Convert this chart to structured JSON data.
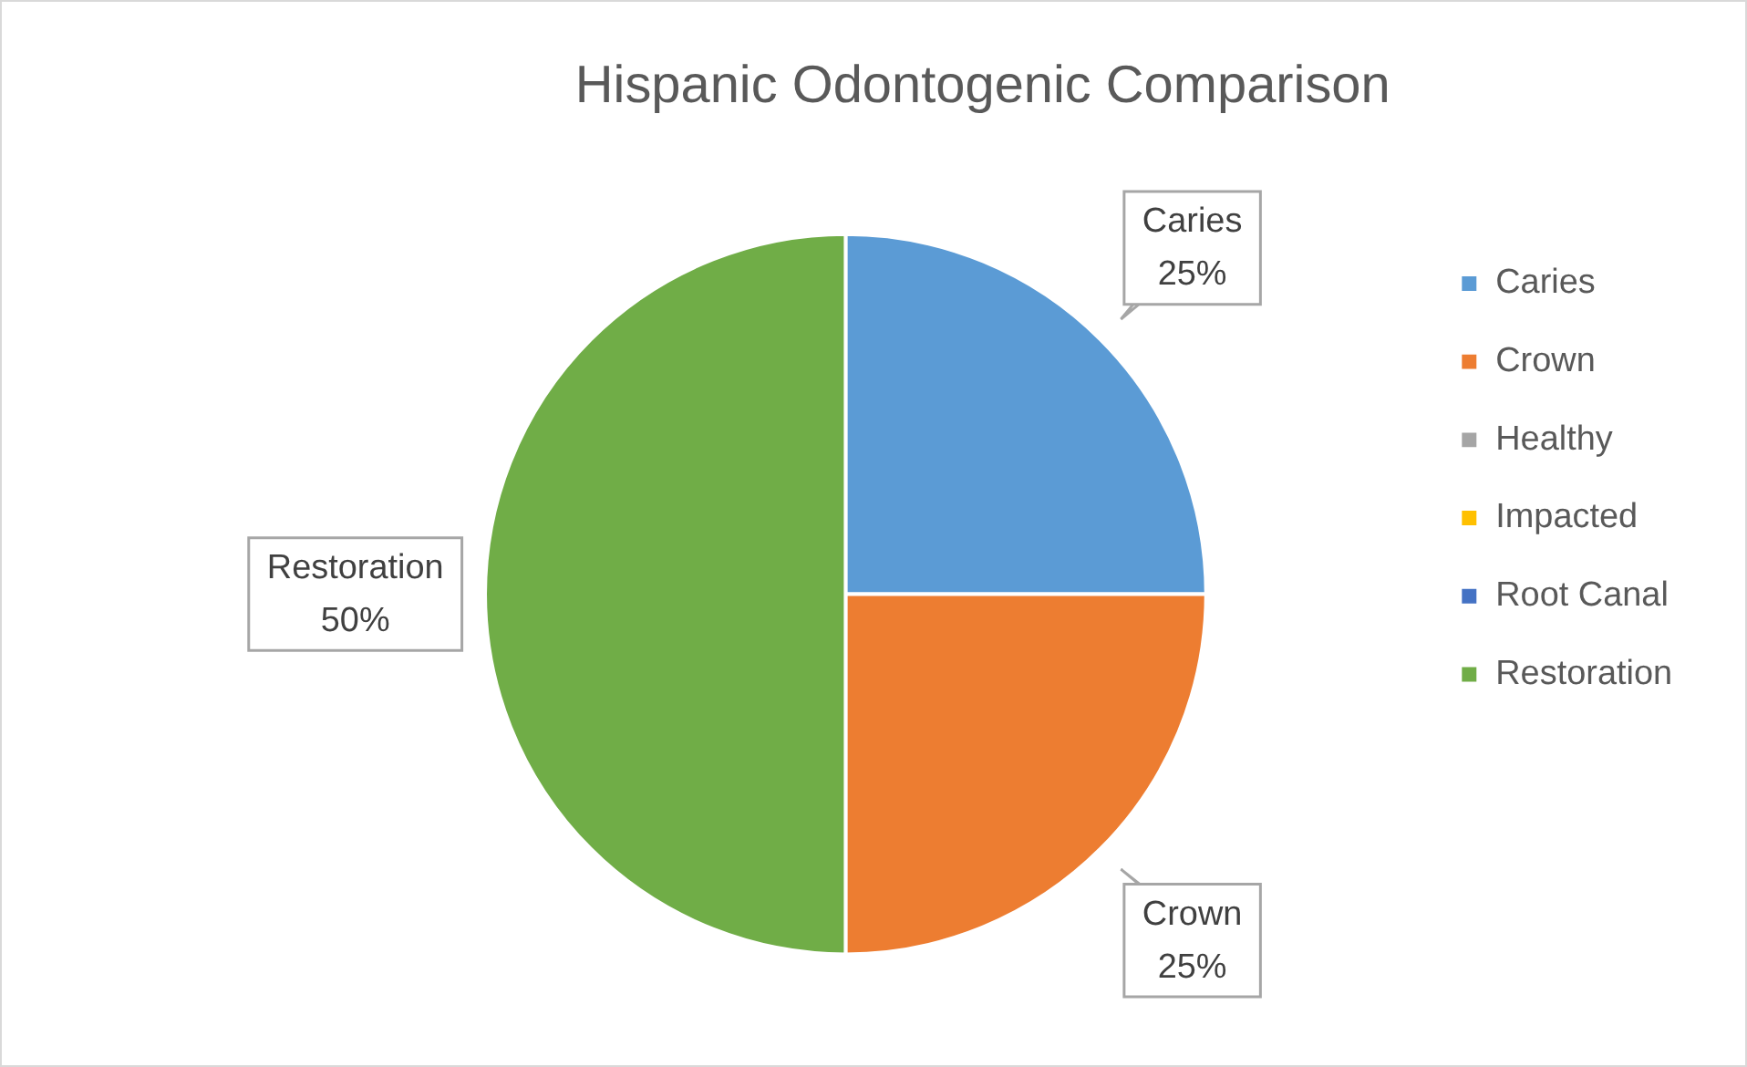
{
  "chart_data": {
    "type": "pie",
    "title": "Hispanic Odontogenic Comparison",
    "categories": [
      "Caries",
      "Crown",
      "Healthy",
      "Impacted",
      "Root Canal",
      "Restoration"
    ],
    "values": [
      25,
      25,
      0,
      0,
      0,
      50
    ],
    "colors": [
      "#5b9bd5",
      "#ed7d31",
      "#a5a5a5",
      "#ffc000",
      "#4472c4",
      "#70ad47"
    ],
    "value_labels": [
      "25%",
      "25%",
      null,
      null,
      null,
      "50%"
    ],
    "legend": "right"
  }
}
